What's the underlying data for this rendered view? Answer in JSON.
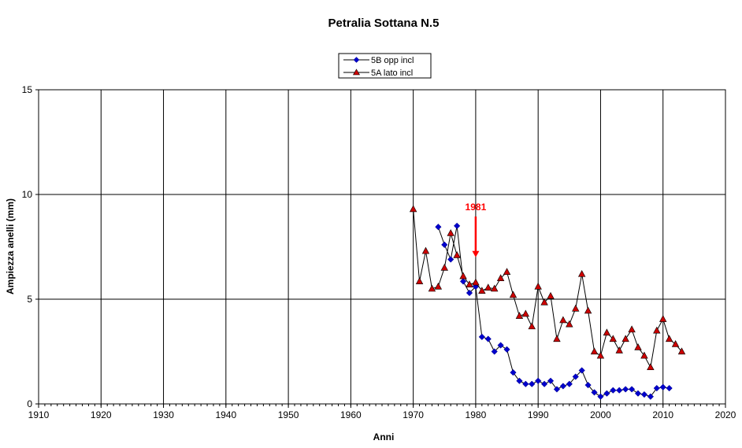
{
  "chart_data": {
    "type": "line",
    "title": "Petralia Sottana N.5",
    "xlabel": "Anni",
    "ylabel": "Ampiezza anelli (mm)",
    "xlim": [
      1910,
      2020
    ],
    "ylim": [
      0,
      15
    ],
    "x_ticks": [
      1910,
      1920,
      1930,
      1940,
      1950,
      1960,
      1970,
      1980,
      1990,
      2000,
      2010,
      2020
    ],
    "y_ticks": [
      0,
      5,
      10,
      15
    ],
    "grid": true,
    "legend_position": "top-center",
    "series": [
      {
        "name": "5B opp incl",
        "color": "#0000cc",
        "marker": "diamond",
        "points": [
          [
            1974,
            8.45
          ],
          [
            1975,
            7.6
          ],
          [
            1976,
            6.9
          ],
          [
            1977,
            8.5
          ],
          [
            1978,
            5.85
          ],
          [
            1979,
            5.3
          ],
          [
            1980,
            5.6
          ],
          [
            1981,
            3.2
          ],
          [
            1982,
            3.1
          ],
          [
            1983,
            2.5
          ],
          [
            1984,
            2.8
          ],
          [
            1985,
            2.6
          ],
          [
            1986,
            1.5
          ],
          [
            1987,
            1.1
          ],
          [
            1988,
            0.95
          ],
          [
            1989,
            0.95
          ],
          [
            1990,
            1.1
          ],
          [
            1991,
            0.95
          ],
          [
            1992,
            1.1
          ],
          [
            1993,
            0.7
          ],
          [
            1994,
            0.85
          ],
          [
            1995,
            0.95
          ],
          [
            1996,
            1.3
          ],
          [
            1997,
            1.6
          ],
          [
            1998,
            0.9
          ],
          [
            1999,
            0.55
          ],
          [
            2000,
            0.35
          ],
          [
            2001,
            0.5
          ],
          [
            2002,
            0.65
          ],
          [
            2003,
            0.65
          ],
          [
            2004,
            0.7
          ],
          [
            2005,
            0.7
          ],
          [
            2006,
            0.5
          ],
          [
            2007,
            0.45
          ],
          [
            2008,
            0.35
          ],
          [
            2009,
            0.75
          ],
          [
            2010,
            0.8
          ],
          [
            2011,
            0.75
          ]
        ]
      },
      {
        "name": "5A lato incl",
        "color": "#cc0000",
        "marker": "triangle",
        "points": [
          [
            1970,
            9.3
          ],
          [
            1971,
            5.85
          ],
          [
            1972,
            7.3
          ],
          [
            1973,
            5.5
          ],
          [
            1974,
            5.6
          ],
          [
            1975,
            6.5
          ],
          [
            1976,
            8.15
          ],
          [
            1977,
            7.1
          ],
          [
            1978,
            6.1
          ],
          [
            1979,
            5.7
          ],
          [
            1980,
            5.8
          ],
          [
            1981,
            5.4
          ],
          [
            1982,
            5.55
          ],
          [
            1983,
            5.5
          ],
          [
            1984,
            6.0
          ],
          [
            1985,
            6.3
          ],
          [
            1986,
            5.2
          ],
          [
            1987,
            4.2
          ],
          [
            1988,
            4.3
          ],
          [
            1989,
            3.7
          ],
          [
            1990,
            5.6
          ],
          [
            1991,
            4.85
          ],
          [
            1992,
            5.15
          ],
          [
            1993,
            3.1
          ],
          [
            1994,
            4.0
          ],
          [
            1995,
            3.8
          ],
          [
            1996,
            4.55
          ],
          [
            1997,
            6.2
          ],
          [
            1998,
            4.45
          ],
          [
            1999,
            2.5
          ],
          [
            2000,
            2.3
          ],
          [
            2001,
            3.4
          ],
          [
            2002,
            3.1
          ],
          [
            2003,
            2.55
          ],
          [
            2004,
            3.1
          ],
          [
            2005,
            3.55
          ],
          [
            2006,
            2.7
          ],
          [
            2007,
            2.3
          ],
          [
            2008,
            1.75
          ],
          [
            2009,
            3.5
          ],
          [
            2010,
            4.05
          ],
          [
            2011,
            3.1
          ],
          [
            2012,
            2.85
          ],
          [
            2013,
            2.5
          ]
        ]
      }
    ],
    "annotations": [
      {
        "text": "1981",
        "x": 1980,
        "y": 9.4,
        "arrow_to_y": 7.0,
        "color": "#ff0000"
      }
    ]
  }
}
